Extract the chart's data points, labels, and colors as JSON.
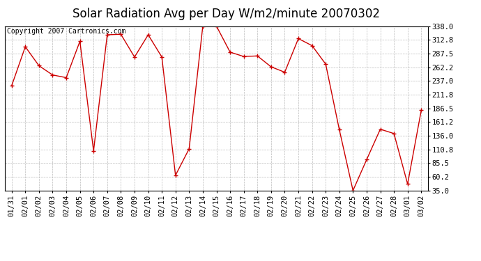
{
  "title": "Solar Radiation Avg per Day W/m2/minute 20070302",
  "copyright": "Copyright 2007 Cartronics.com",
  "dates": [
    "01/31",
    "02/01",
    "02/02",
    "02/03",
    "02/04",
    "02/05",
    "02/06",
    "02/07",
    "02/08",
    "02/09",
    "02/10",
    "02/11",
    "02/12",
    "02/13",
    "02/14",
    "02/15",
    "02/16",
    "02/17",
    "02/18",
    "02/19",
    "02/20",
    "02/21",
    "02/22",
    "02/23",
    "02/24",
    "02/25",
    "02/26",
    "02/27",
    "02/28",
    "03/01",
    "03/02"
  ],
  "values": [
    228,
    300,
    265,
    248,
    243,
    310,
    108,
    322,
    323,
    281,
    322,
    281,
    63,
    112,
    338,
    338,
    290,
    282,
    283,
    263,
    253,
    315,
    302,
    268,
    147,
    35,
    92,
    148,
    140,
    47,
    183
  ],
  "line_color": "#cc0000",
  "marker": "+",
  "bg_color": "#ffffff",
  "plot_bg_color": "#ffffff",
  "grid_color": "#bbbbbb",
  "ylim_min": 35.0,
  "ylim_max": 338.0,
  "yticks": [
    35.0,
    60.2,
    85.5,
    110.8,
    136.0,
    161.2,
    186.5,
    211.8,
    237.0,
    262.2,
    287.5,
    312.8,
    338.0
  ],
  "title_fontsize": 12,
  "copyright_fontsize": 7,
  "tick_fontsize": 7.5
}
